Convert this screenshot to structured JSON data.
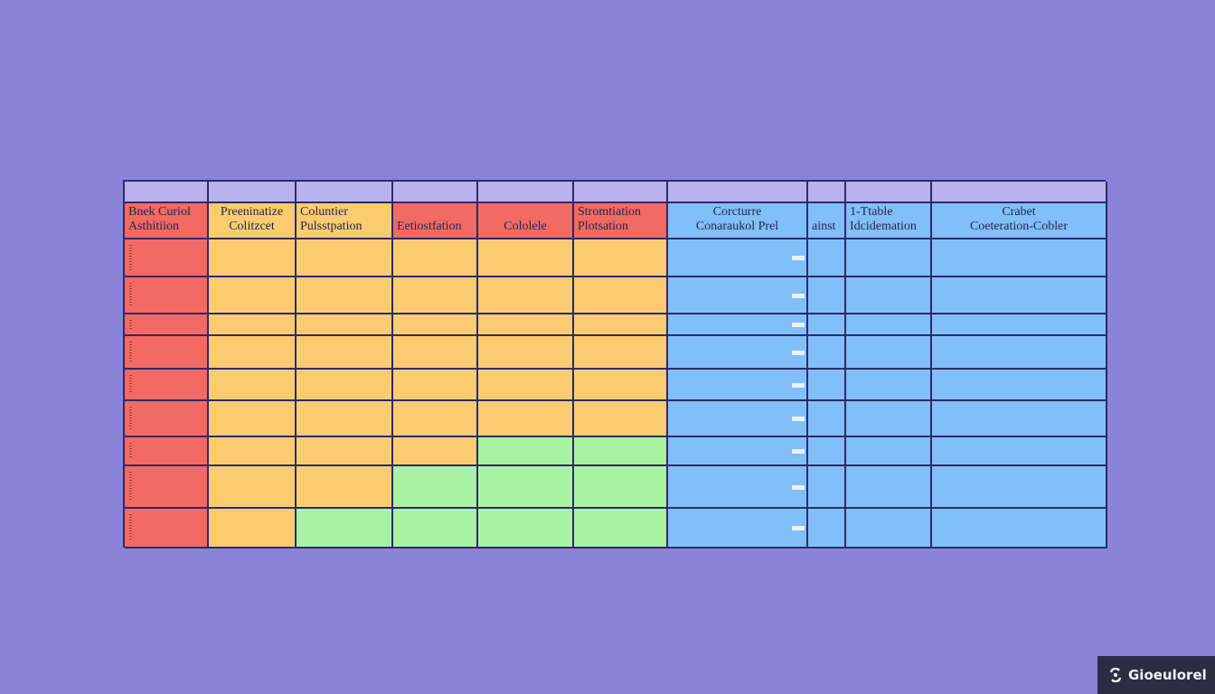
{
  "table": {
    "headers": [
      {
        "line1": "Bnek Curiol",
        "line2": "Asthitiion"
      },
      {
        "line1": "Preeninatize",
        "line2": "Colitzcet"
      },
      {
        "line1": "Coluntier",
        "line2": "Pulsstpation"
      },
      {
        "line1": "",
        "line2": "Eetiostfation"
      },
      {
        "line1": "",
        "line2": "Cololele"
      },
      {
        "line1": "Stromtiation",
        "line2": "Plotsation"
      },
      {
        "line1": "Corcturre",
        "line2": "Conaraukol Prel"
      },
      {
        "line1": "",
        "line2": "ainst"
      },
      {
        "line1": "1-Ttable",
        "line2": "Idcidemation"
      },
      {
        "line1": "Crabet",
        "line2": "Coeteration-Cobler"
      }
    ],
    "row_count": 9,
    "colors": {
      "red": "#f26a63",
      "yellow": "#fbcc6f",
      "green": "#a8f2a4",
      "blue": "#82bff8",
      "header_strip": "#b9b2ee",
      "grid_line": "#2c2a6b",
      "background": "#8a84d6"
    },
    "fill_map": [
      [
        "r",
        "y",
        "y",
        "y",
        "y",
        "y",
        "b",
        "b",
        "b",
        "b"
      ],
      [
        "r",
        "y",
        "y",
        "y",
        "y",
        "y",
        "b",
        "b",
        "b",
        "b"
      ],
      [
        "r",
        "y",
        "y",
        "y",
        "y",
        "y",
        "b",
        "b",
        "b",
        "b"
      ],
      [
        "r",
        "y",
        "y",
        "y",
        "y",
        "y",
        "b",
        "b",
        "b",
        "b"
      ],
      [
        "r",
        "y",
        "y",
        "y",
        "y",
        "y",
        "b",
        "b",
        "b",
        "b"
      ],
      [
        "r",
        "y",
        "y",
        "y",
        "y",
        "y",
        "b",
        "b",
        "b",
        "b"
      ],
      [
        "r",
        "y",
        "y",
        "y",
        "g",
        "g",
        "b",
        "b",
        "b",
        "b"
      ],
      [
        "r",
        "y",
        "y",
        "g",
        "g",
        "g",
        "b",
        "b",
        "b",
        "b"
      ],
      [
        "r",
        "y",
        "g",
        "g",
        "g",
        "g",
        "b",
        "b",
        "b",
        "b"
      ]
    ]
  },
  "badge": {
    "label": "Gioeulorel",
    "icon": "logo-icon"
  }
}
